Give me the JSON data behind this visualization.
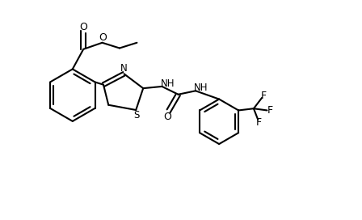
{
  "bg_color": "#ffffff",
  "line_color": "#000000",
  "lw": 1.5,
  "figsize": [
    4.48,
    2.72
  ],
  "dpi": 100,
  "xlim": [
    0,
    10
  ],
  "ylim": [
    0,
    6.08
  ]
}
